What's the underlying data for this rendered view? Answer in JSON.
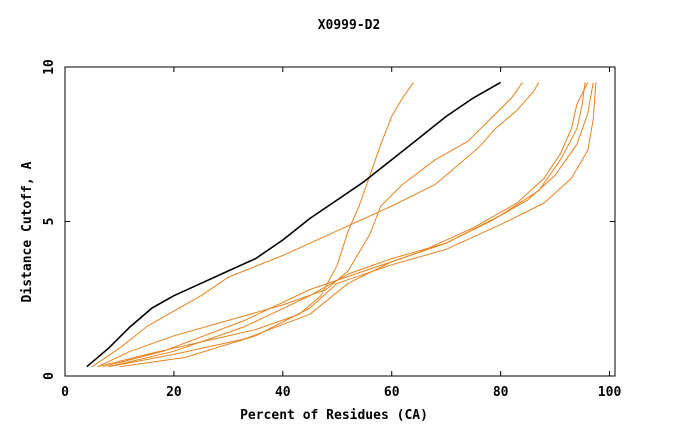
{
  "chart_data": {
    "type": "line",
    "title": "X0999-D2",
    "xlabel": "Percent of Residues (CA)",
    "ylabel": "Distance Cutoff, A",
    "xlim": [
      0,
      101
    ],
    "ylim": [
      0,
      10
    ],
    "xticks": [
      0,
      20,
      40,
      60,
      80,
      100
    ],
    "xtick_labels": [
      "0",
      "20",
      "40",
      "60",
      "80",
      "100"
    ],
    "yticks": [
      0,
      5,
      10
    ],
    "ytick_labels": [
      "0",
      "5",
      "10"
    ],
    "grid": false,
    "highlight_color": "#000000",
    "other_color": "#e8821e",
    "series": [
      {
        "highlight": true,
        "points": [
          [
            4,
            0.3
          ],
          [
            8,
            0.9
          ],
          [
            12,
            1.6
          ],
          [
            16,
            2.2
          ],
          [
            20,
            2.6
          ],
          [
            25,
            3.0
          ],
          [
            30,
            3.4
          ],
          [
            35,
            3.8
          ],
          [
            40,
            4.4
          ],
          [
            45,
            5.1
          ],
          [
            50,
            5.7
          ],
          [
            55,
            6.3
          ],
          [
            60,
            7.0
          ],
          [
            65,
            7.7
          ],
          [
            70,
            8.4
          ],
          [
            75,
            9.0
          ],
          [
            80,
            9.5
          ]
        ]
      },
      {
        "points": [
          [
            5,
            0.3
          ],
          [
            10,
            0.9
          ],
          [
            15,
            1.6
          ],
          [
            20,
            2.1
          ],
          [
            25,
            2.6
          ],
          [
            30,
            3.2
          ],
          [
            40,
            3.9
          ],
          [
            50,
            4.7
          ],
          [
            60,
            5.5
          ],
          [
            68,
            6.2
          ],
          [
            72,
            6.8
          ],
          [
            76,
            7.4
          ],
          [
            79,
            8.0
          ],
          [
            83,
            8.6
          ],
          [
            86,
            9.2
          ],
          [
            87,
            9.5
          ]
        ]
      },
      {
        "points": [
          [
            6,
            0.3
          ],
          [
            12,
            0.8
          ],
          [
            20,
            1.3
          ],
          [
            30,
            1.8
          ],
          [
            40,
            2.3
          ],
          [
            48,
            2.8
          ],
          [
            52,
            3.4
          ],
          [
            56,
            4.6
          ],
          [
            58,
            5.5
          ],
          [
            62,
            6.2
          ],
          [
            68,
            7.0
          ],
          [
            74,
            7.6
          ],
          [
            78,
            8.3
          ],
          [
            82,
            9.0
          ],
          [
            84,
            9.5
          ]
        ]
      },
      {
        "points": [
          [
            6,
            0.3
          ],
          [
            15,
            0.7
          ],
          [
            25,
            1.1
          ],
          [
            35,
            1.5
          ],
          [
            43,
            2.0
          ],
          [
            47,
            2.6
          ],
          [
            50,
            3.6
          ],
          [
            52,
            4.7
          ],
          [
            54,
            5.5
          ],
          [
            56,
            6.5
          ],
          [
            58,
            7.5
          ],
          [
            60,
            8.4
          ],
          [
            62,
            9.0
          ],
          [
            64,
            9.5
          ]
        ]
      },
      {
        "points": [
          [
            8,
            0.3
          ],
          [
            20,
            0.8
          ],
          [
            33,
            1.6
          ],
          [
            45,
            2.6
          ],
          [
            52,
            3.3
          ],
          [
            60,
            3.8
          ],
          [
            70,
            4.3
          ],
          [
            78,
            5.0
          ],
          [
            85,
            5.7
          ],
          [
            90,
            6.5
          ],
          [
            94,
            7.5
          ],
          [
            96,
            8.5
          ],
          [
            97,
            9.5
          ]
        ]
      },
      {
        "points": [
          [
            10,
            0.3
          ],
          [
            22,
            0.6
          ],
          [
            35,
            1.3
          ],
          [
            45,
            2.2
          ],
          [
            50,
            3.0
          ],
          [
            60,
            3.6
          ],
          [
            70,
            4.1
          ],
          [
            80,
            4.9
          ],
          [
            88,
            5.6
          ],
          [
            93,
            6.4
          ],
          [
            96,
            7.3
          ],
          [
            97,
            8.3
          ],
          [
            97.5,
            9.5
          ]
        ]
      },
      {
        "points": [
          [
            8,
            0.3
          ],
          [
            20,
            0.7
          ],
          [
            33,
            1.2
          ],
          [
            45,
            2.0
          ],
          [
            52,
            3.0
          ],
          [
            60,
            3.7
          ],
          [
            70,
            4.3
          ],
          [
            80,
            5.2
          ],
          [
            87,
            6.0
          ],
          [
            91,
            7.0
          ],
          [
            94,
            8.0
          ],
          [
            95,
            8.8
          ],
          [
            95.5,
            9.5
          ]
        ]
      },
      {
        "points": [
          [
            7,
            0.3
          ],
          [
            18,
            0.8
          ],
          [
            33,
            1.8
          ],
          [
            45,
            2.8
          ],
          [
            55,
            3.4
          ],
          [
            65,
            4.0
          ],
          [
            75,
            4.8
          ],
          [
            83,
            5.6
          ],
          [
            88,
            6.4
          ],
          [
            91,
            7.2
          ],
          [
            93,
            8.0
          ],
          [
            94,
            8.8
          ],
          [
            96,
            9.5
          ]
        ]
      }
    ]
  }
}
